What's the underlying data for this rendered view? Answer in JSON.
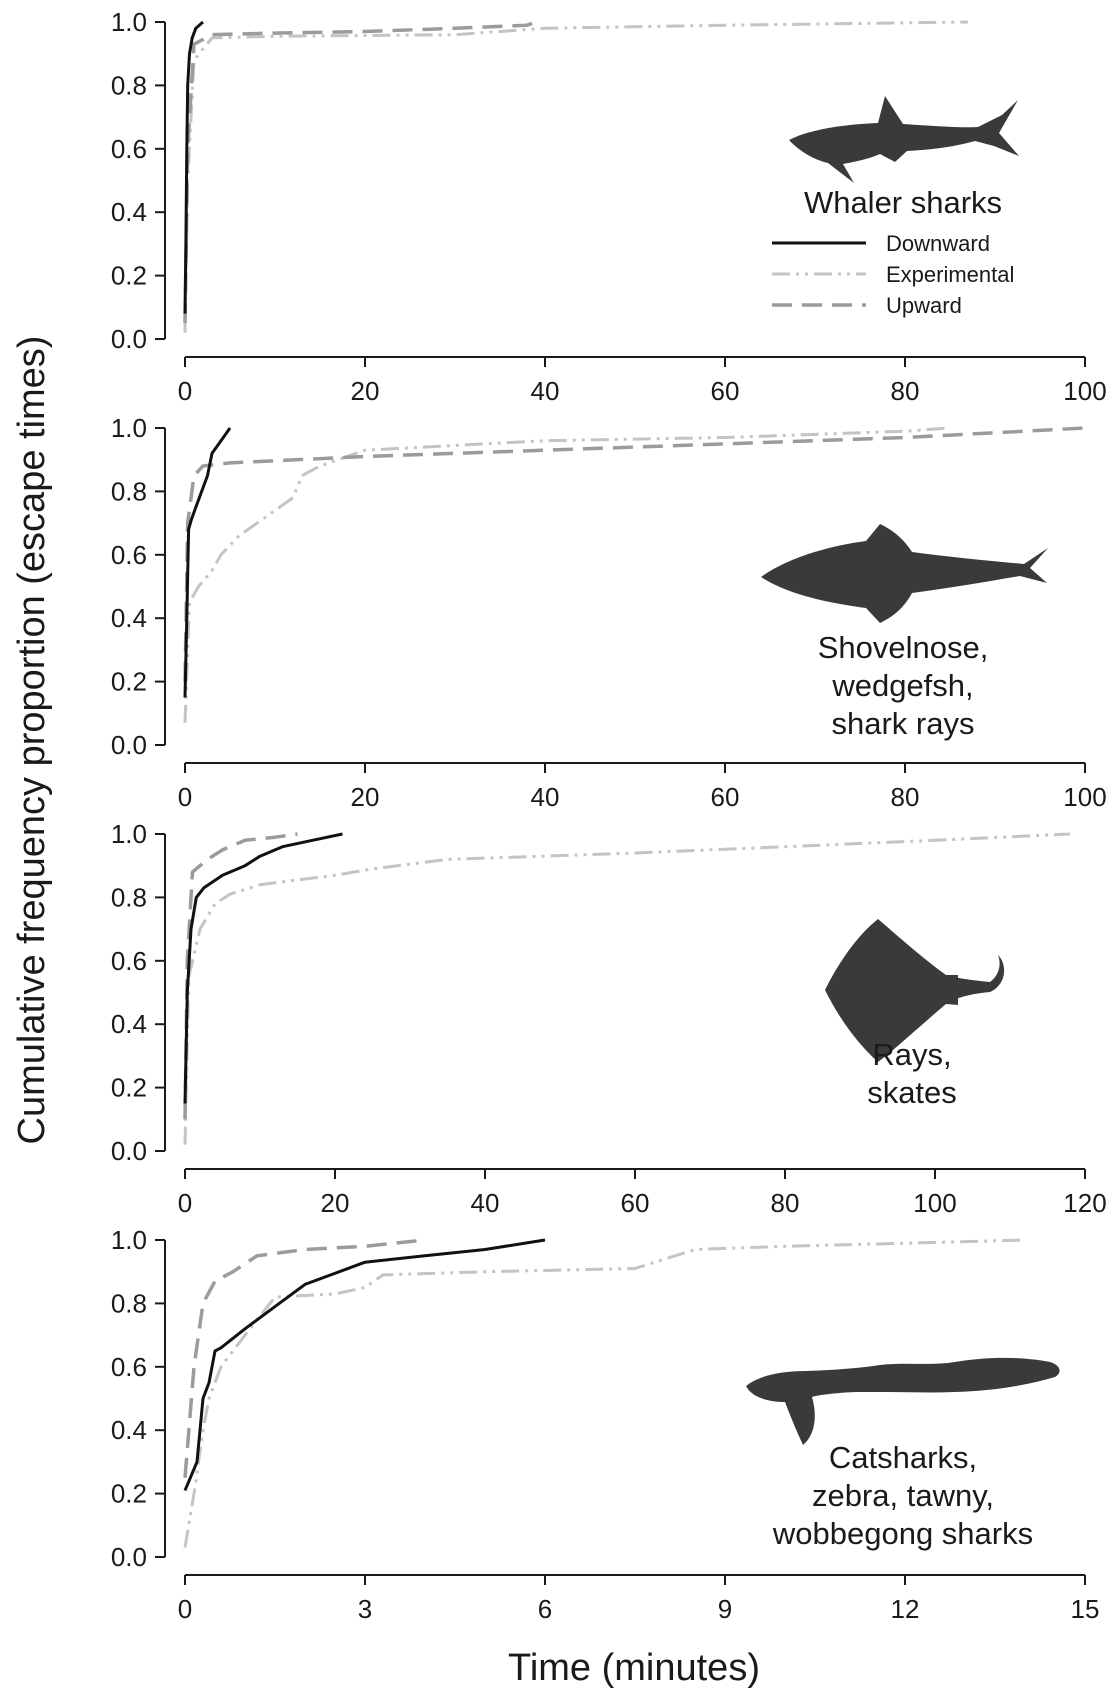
{
  "colors": {
    "downward": "#111111",
    "experimental": "#c4c4c4",
    "upward": "#9b9b9b",
    "silhouette": "#3a3a3a",
    "axis": "#1a1a1a"
  },
  "legend": {
    "placement": "right, inside top panel",
    "items": [
      {
        "key": "downward",
        "label": "Downward"
      },
      {
        "key": "experimental",
        "label": "Experimental"
      },
      {
        "key": "upward",
        "label": "Upward"
      }
    ]
  },
  "ylabel": "Cumulative frequency proportion (escape times)",
  "xlabel": "Time (minutes)",
  "chart_data": [
    {
      "type": "line",
      "group_label": [
        "Whaler sharks"
      ],
      "icon": "whaler-shark-icon",
      "xlim": [
        0,
        100
      ],
      "xticks": [
        0,
        20,
        40,
        60,
        80,
        100
      ],
      "ylim": [
        0,
        1
      ],
      "yticks": [
        "0.0",
        "0.2",
        "0.4",
        "0.6",
        "0.8",
        "1.0"
      ],
      "show_legend": true,
      "series": [
        {
          "key": "downward",
          "x": [
            0,
            0.1,
            0.2,
            0.3,
            0.5,
            0.8,
            1.2,
            2.0
          ],
          "y": [
            0.08,
            0.3,
            0.6,
            0.8,
            0.9,
            0.95,
            0.98,
            1.0
          ]
        },
        {
          "key": "experimental",
          "x": [
            0,
            0.3,
            1,
            3,
            10,
            30,
            40,
            60,
            87
          ],
          "y": [
            0.02,
            0.5,
            0.88,
            0.95,
            0.955,
            0.96,
            0.98,
            0.99,
            1.0
          ]
        },
        {
          "key": "upward",
          "x": [
            0,
            0.3,
            1,
            3,
            10,
            20,
            30,
            38,
            39
          ],
          "y": [
            0.05,
            0.6,
            0.93,
            0.96,
            0.965,
            0.97,
            0.98,
            0.99,
            1.0
          ]
        }
      ]
    },
    {
      "type": "line",
      "group_label": [
        "Shovelnose,",
        "wedgefsh,",
        "shark rays"
      ],
      "icon": "shovelnose-ray-icon",
      "xlim": [
        0,
        100
      ],
      "xticks": [
        0,
        20,
        40,
        60,
        80,
        100
      ],
      "ylim": [
        0,
        1
      ],
      "yticks": [
        "0.0",
        "0.2",
        "0.4",
        "0.6",
        "0.8",
        "1.0"
      ],
      "show_legend": false,
      "series": [
        {
          "key": "downward",
          "x": [
            0,
            0.2,
            0.4,
            0.7,
            1.2,
            2.5,
            3.0,
            4.0,
            5.0
          ],
          "y": [
            0.15,
            0.4,
            0.68,
            0.71,
            0.75,
            0.85,
            0.92,
            0.96,
            1.0
          ]
        },
        {
          "key": "experimental",
          "x": [
            0,
            0.5,
            1.5,
            3,
            4,
            6,
            9,
            12,
            13,
            15,
            20,
            40,
            60,
            80,
            85
          ],
          "y": [
            0.07,
            0.45,
            0.5,
            0.55,
            0.6,
            0.66,
            0.72,
            0.78,
            0.85,
            0.88,
            0.93,
            0.96,
            0.97,
            0.99,
            1.0
          ]
        },
        {
          "key": "upward",
          "x": [
            0,
            0.3,
            1,
            2,
            5,
            20,
            40,
            60,
            80,
            100
          ],
          "y": [
            0.2,
            0.7,
            0.85,
            0.88,
            0.89,
            0.91,
            0.93,
            0.95,
            0.97,
            1.0
          ]
        }
      ]
    },
    {
      "type": "line",
      "group_label": [
        "Rays,",
        "skates"
      ],
      "icon": "stingray-icon",
      "xlim": [
        0,
        120
      ],
      "xticks": [
        0,
        20,
        40,
        60,
        80,
        100,
        120
      ],
      "ylim": [
        0,
        1
      ],
      "yticks": [
        "0.0",
        "0.2",
        "0.4",
        "0.6",
        "0.8",
        "1.0"
      ],
      "show_legend": false,
      "series": [
        {
          "key": "downward",
          "x": [
            0,
            0.3,
            0.8,
            1.5,
            2.5,
            5,
            8,
            10,
            13,
            17,
            21
          ],
          "y": [
            0.15,
            0.5,
            0.7,
            0.8,
            0.83,
            0.87,
            0.9,
            0.93,
            0.96,
            0.98,
            1.0
          ]
        },
        {
          "key": "experimental",
          "x": [
            0,
            0.5,
            2,
            4,
            6,
            10,
            20,
            25,
            35,
            60,
            80,
            100,
            118
          ],
          "y": [
            0.02,
            0.55,
            0.7,
            0.78,
            0.81,
            0.84,
            0.87,
            0.89,
            0.92,
            0.94,
            0.96,
            0.98,
            1.0
          ]
        },
        {
          "key": "upward",
          "x": [
            0,
            0.3,
            1,
            2,
            3,
            5,
            8,
            12,
            15
          ],
          "y": [
            0.1,
            0.6,
            0.88,
            0.9,
            0.92,
            0.95,
            0.98,
            0.99,
            1.0
          ]
        }
      ]
    },
    {
      "type": "line",
      "group_label": [
        "Catsharks,",
        "zebra, tawny,",
        "wobbegong sharks"
      ],
      "icon": "wobbegong-shark-icon",
      "xlim": [
        0,
        15
      ],
      "xticks": [
        0,
        3,
        6,
        9,
        12,
        15
      ],
      "ylim": [
        0,
        1
      ],
      "yticks": [
        "0.0",
        "0.2",
        "0.4",
        "0.6",
        "0.8",
        "1.0"
      ],
      "show_legend": false,
      "series": [
        {
          "key": "downward",
          "x": [
            0,
            0.2,
            0.3,
            0.4,
            0.5,
            0.6,
            1.0,
            1.5,
            2.0,
            3.0,
            4.0,
            5.0,
            6.0
          ],
          "y": [
            0.21,
            0.3,
            0.5,
            0.55,
            0.65,
            0.66,
            0.72,
            0.79,
            0.86,
            0.93,
            0.95,
            0.97,
            1.0
          ]
        },
        {
          "key": "experimental",
          "x": [
            0,
            0.15,
            0.3,
            0.4,
            0.6,
            1.0,
            1.5,
            2.5,
            3.0,
            3.3,
            5.0,
            7.5,
            8.5,
            10,
            12,
            14
          ],
          "y": [
            0.03,
            0.2,
            0.4,
            0.5,
            0.6,
            0.7,
            0.82,
            0.83,
            0.85,
            0.89,
            0.9,
            0.91,
            0.97,
            0.98,
            0.99,
            1.0
          ]
        },
        {
          "key": "upward",
          "x": [
            0,
            0.15,
            0.3,
            0.5,
            0.8,
            1.2,
            2.0,
            3.0,
            4.0
          ],
          "y": [
            0.25,
            0.6,
            0.8,
            0.87,
            0.9,
            0.95,
            0.97,
            0.98,
            1.0
          ]
        }
      ]
    }
  ]
}
